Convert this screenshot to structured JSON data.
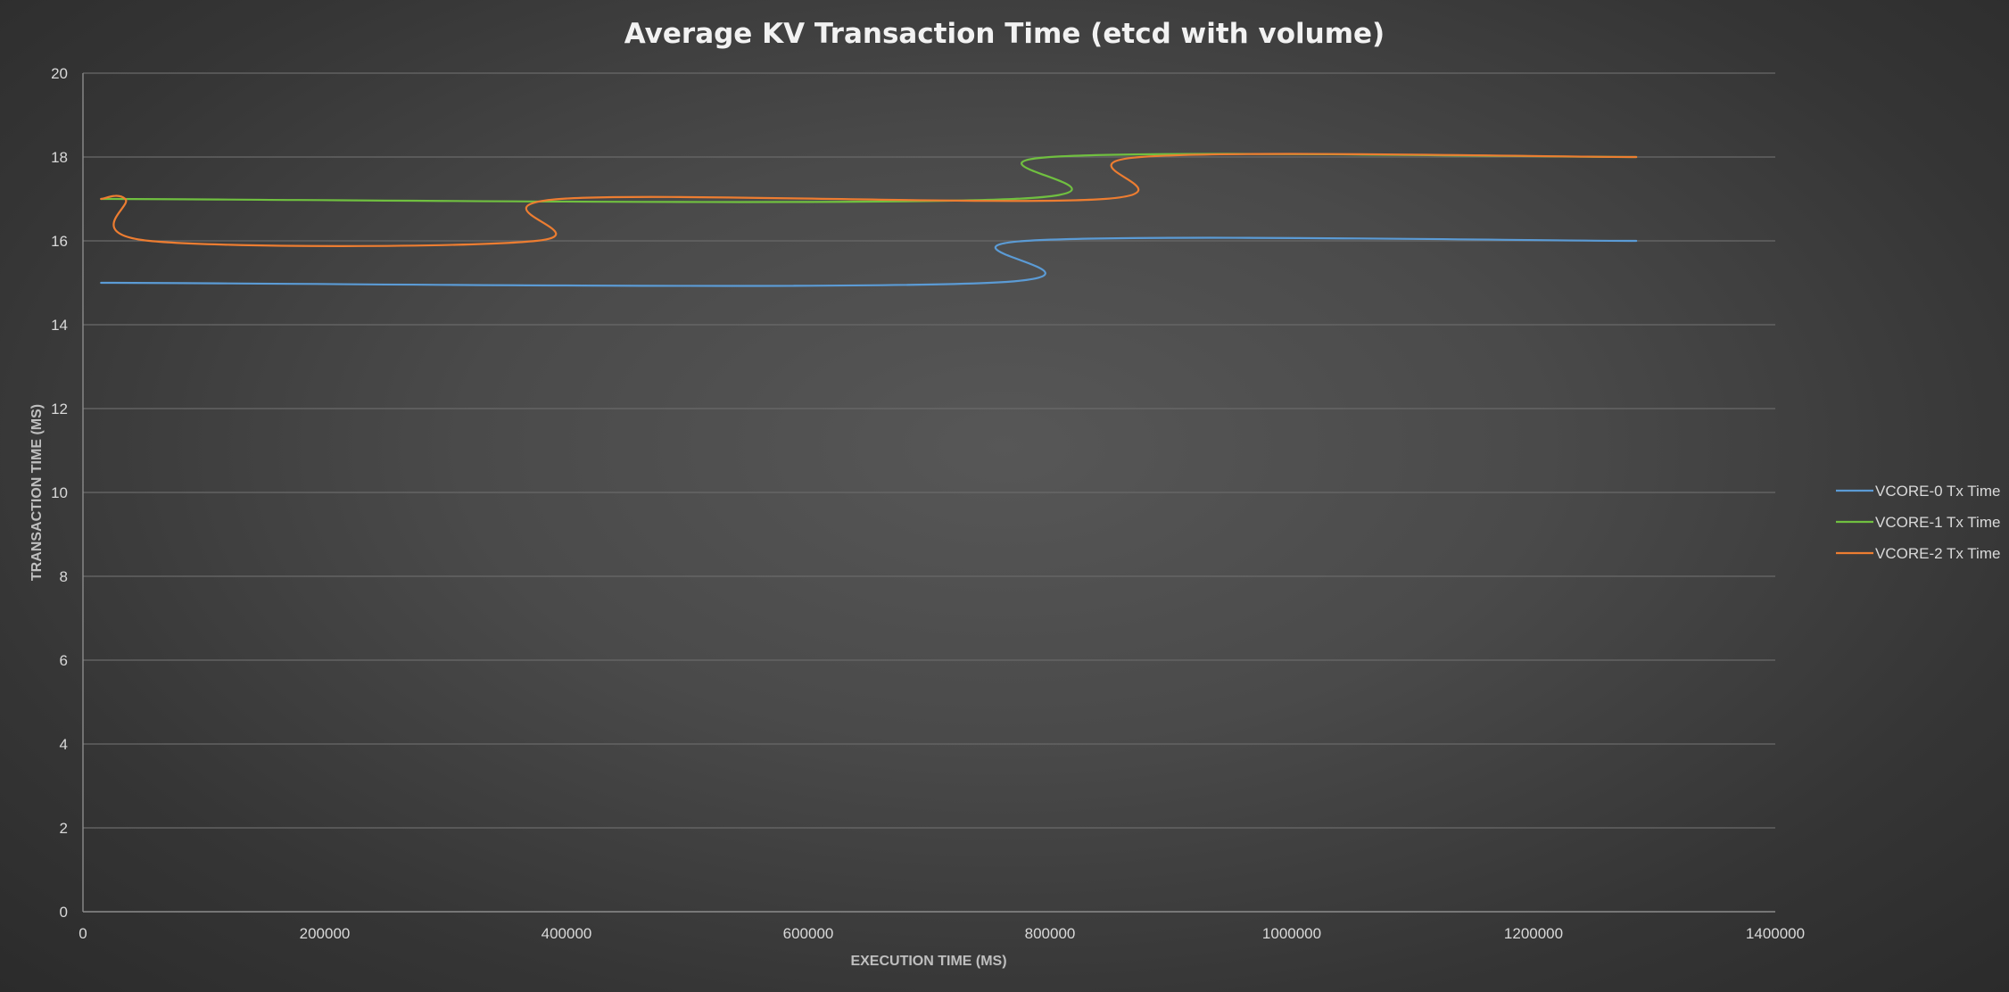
{
  "chart_data": {
    "type": "line",
    "title": "Average KV Transaction Time (etcd with volume)",
    "xlabel": "EXECUTION TIME (MS)",
    "ylabel": "TRANSACTION TIME (MS)",
    "xlim": [
      0,
      1400000
    ],
    "ylim": [
      0,
      20
    ],
    "x_ticks": [
      "0",
      "200000",
      "400000",
      "600000",
      "800000",
      "1000000",
      "1200000",
      "1400000"
    ],
    "y_ticks": [
      "0",
      "2",
      "4",
      "6",
      "8",
      "10",
      "12",
      "14",
      "16",
      "18",
      "20"
    ],
    "grid": "horizontal",
    "legend_position": "right",
    "series": [
      {
        "name": "VCORE-0 Tx Time",
        "color": "#5b9bd5",
        "x": [
          15000,
          750000,
          780000,
          1285000
        ],
        "y": [
          15,
          15,
          16,
          16
        ]
      },
      {
        "name": "VCORE-1 Tx Time",
        "color": "#70c040",
        "x": [
          15000,
          770000,
          800000,
          1285000
        ],
        "y": [
          17,
          17,
          18,
          18
        ]
      },
      {
        "name": "VCORE-2 Tx Time",
        "color": "#ed7d31",
        "x": [
          15000,
          35000,
          55000,
          375000,
          395000,
          845000,
          875000,
          1285000
        ],
        "y": [
          17,
          17,
          16,
          16,
          17,
          17,
          18,
          18
        ]
      }
    ]
  }
}
